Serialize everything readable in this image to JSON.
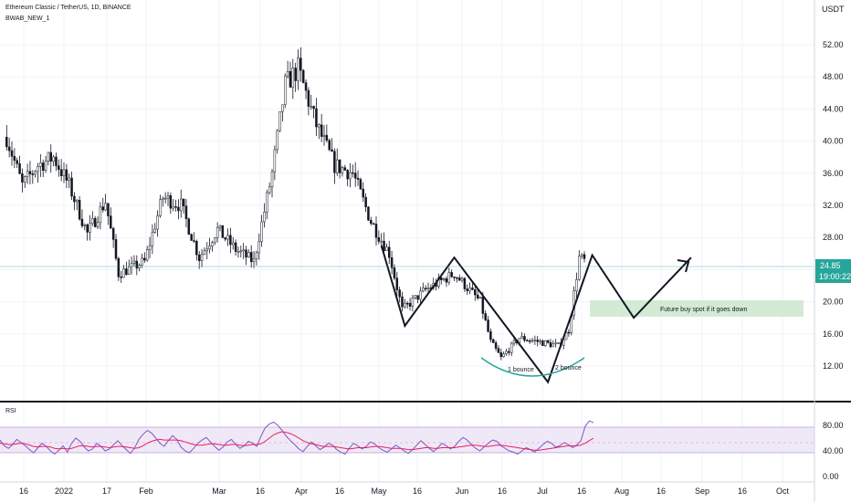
{
  "header": {
    "symbol": "Ethereum Classic / TetherUS, 1D, BINANCE",
    "indicator": "BWAB_NEW_1",
    "currency": "USDT",
    "rsi_label": "RSI"
  },
  "price_badge": {
    "price": "24.85",
    "countdown": "19:00:22",
    "color": "#26a69a"
  },
  "annotations": {
    "future_buy": "Future buy spot if it goes down",
    "bounce1": "1 bounce",
    "bounce2": "2 bounce"
  },
  "colors": {
    "up": "#ffffff",
    "down": "#131722",
    "rsi": "#7e57c2",
    "rsi_ma": "#e91e63",
    "band": "#ede7f6",
    "zone": "#c8e6c9",
    "arc": "#26a69a"
  },
  "chart_data": {
    "type": "candlestick",
    "title": "Ethereum Classic / TetherUS, 1D, BINANCE",
    "price_axis": {
      "label": "USDT",
      "ticks": [
        "52.00",
        "48.00",
        "44.00",
        "40.00",
        "36.00",
        "32.00",
        "28.00",
        "24.00",
        "20.00",
        "16.00",
        "12.00"
      ],
      "range": [
        9,
        55
      ]
    },
    "time_axis": {
      "ticks": [
        "16",
        "2022",
        "17",
        "Feb",
        "Mar",
        "16",
        "Apr",
        "16",
        "May",
        "16",
        "Jun",
        "16",
        "Jul",
        "16",
        "Aug",
        "16",
        "Sep",
        "16",
        "Oct"
      ]
    },
    "price_path_approx": [
      {
        "date": "2021-12-10",
        "close": 40.5
      },
      {
        "date": "2021-12-16",
        "close": 34.5
      },
      {
        "date": "2021-12-22",
        "close": 37.0
      },
      {
        "date": "2021-12-28",
        "close": 38.0
      },
      {
        "date": "2022-01-03",
        "close": 34.5
      },
      {
        "date": "2022-01-10",
        "close": 28.5
      },
      {
        "date": "2022-01-17",
        "close": 32.5
      },
      {
        "date": "2022-01-22",
        "close": 23.5
      },
      {
        "date": "2022-02-01",
        "close": 25.0
      },
      {
        "date": "2022-02-08",
        "close": 33.0
      },
      {
        "date": "2022-02-15",
        "close": 32.0
      },
      {
        "date": "2022-02-22",
        "close": 25.5
      },
      {
        "date": "2022-03-01",
        "close": 29.0
      },
      {
        "date": "2022-03-08",
        "close": 26.5
      },
      {
        "date": "2022-03-15",
        "close": 25.0
      },
      {
        "date": "2022-03-22",
        "close": 36.0
      },
      {
        "date": "2022-03-27",
        "close": 47.0
      },
      {
        "date": "2022-04-01",
        "close": 49.0
      },
      {
        "date": "2022-04-08",
        "close": 42.0
      },
      {
        "date": "2022-04-15",
        "close": 37.0
      },
      {
        "date": "2022-04-22",
        "close": 36.0
      },
      {
        "date": "2022-04-29",
        "close": 30.0
      },
      {
        "date": "2022-05-06",
        "close": 26.0
      },
      {
        "date": "2022-05-11",
        "close": 19.0
      },
      {
        "date": "2022-05-20",
        "close": 21.5
      },
      {
        "date": "2022-05-31",
        "close": 23.5
      },
      {
        "date": "2022-06-10",
        "close": 20.0
      },
      {
        "date": "2022-06-14",
        "close": 15.0
      },
      {
        "date": "2022-06-18",
        "close": 13.0
      },
      {
        "date": "2022-06-25",
        "close": 15.5
      },
      {
        "date": "2022-07-03",
        "close": 15.0
      },
      {
        "date": "2022-07-10",
        "close": 14.5
      },
      {
        "date": "2022-07-14",
        "close": 16.5
      },
      {
        "date": "2022-07-18",
        "close": 25.5
      },
      {
        "date": "2022-07-21",
        "close": 24.85
      }
    ],
    "drawings": {
      "zigzag": [
        [
          27.0,
          "2022-05-03"
        ],
        [
          17.0,
          "2022-05-12"
        ],
        [
          25.5,
          "2022-05-31"
        ],
        [
          10.0,
          "2022-07-06"
        ],
        [
          25.8,
          "2022-07-23"
        ],
        [
          18.0,
          "2022-08-08"
        ],
        [
          25.5,
          "2022-08-30"
        ]
      ],
      "buy_zone_usdt": [
        18.8,
        20.8
      ]
    },
    "rsi": {
      "ticks": [
        "80.00",
        "40.00",
        "0.00"
      ],
      "band": [
        30,
        70
      ],
      "mid_dashed": 50,
      "range": [
        0,
        100
      ],
      "values_approx": [
        57,
        48,
        44,
        50,
        58,
        53,
        48,
        42,
        37,
        45,
        52,
        47,
        40,
        35,
        41,
        48,
        38,
        52,
        60,
        55,
        46,
        40,
        43,
        52,
        47,
        40,
        43,
        50,
        56,
        48,
        42,
        36,
        45,
        58,
        66,
        72,
        68,
        60,
        52,
        47,
        56,
        64,
        58,
        46,
        40,
        37,
        44,
        52,
        57,
        61,
        54,
        47,
        41,
        46,
        54,
        58,
        50,
        44,
        48,
        55,
        52,
        47,
        63,
        76,
        82,
        85,
        80,
        72,
        63,
        56,
        50,
        43,
        39,
        47,
        54,
        48,
        42,
        46,
        52,
        49,
        42,
        38,
        35,
        44,
        52,
        48,
        43,
        47,
        54,
        51,
        45,
        41,
        38,
        43,
        49,
        45,
        40,
        36,
        42,
        49,
        56,
        50,
        44,
        39,
        45,
        52,
        48,
        43,
        47,
        55,
        61,
        57,
        50,
        44,
        40,
        46,
        52,
        57,
        55,
        48,
        44,
        40,
        38,
        35,
        40,
        45,
        42,
        38,
        44,
        50,
        55,
        52,
        46,
        48,
        53,
        50,
        45,
        49,
        56,
        78,
        87,
        84
      ],
      "ma_approx": [
        52,
        51,
        50,
        50,
        51,
        52,
        51,
        49,
        47,
        46,
        47,
        47,
        46,
        44,
        43,
        44,
        43,
        44,
        46,
        48,
        48,
        47,
        46,
        47,
        47,
        46,
        45,
        46,
        47,
        47,
        46,
        45,
        44,
        45,
        48,
        52,
        55,
        57,
        58,
        57,
        57,
        57,
        57,
        56,
        54,
        52,
        50,
        49,
        49,
        50,
        51,
        51,
        50,
        49,
        49,
        50,
        50,
        49,
        48,
        49,
        50,
        50,
        51,
        55,
        60,
        65,
        68,
        70,
        69,
        67,
        64,
        60,
        56,
        53,
        51,
        50,
        48,
        47,
        47,
        47,
        46,
        45,
        44,
        43,
        44,
        45,
        45,
        45,
        46,
        47,
        47,
        46,
        45,
        44,
        44,
        44,
        43,
        42,
        42,
        43,
        44,
        45,
        45,
        44,
        44,
        45,
        45,
        45,
        45,
        46,
        47,
        48,
        49,
        49,
        48,
        47,
        47,
        48,
        49,
        49,
        48,
        47,
        46,
        45,
        44,
        43,
        42,
        41,
        41,
        42,
        43,
        44,
        45,
        46,
        47,
        48,
        48,
        48,
        49,
        52,
        56,
        60
      ]
    }
  }
}
